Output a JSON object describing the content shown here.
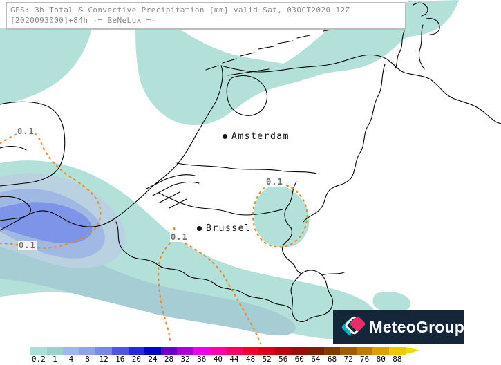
{
  "header": {
    "line1": "GFS: 3h Total & Convective Precipitation [mm] valid Sat, 03OCT2020 12Z",
    "line2": "[2020093000]+84h -= BeNeLux =-"
  },
  "map": {
    "cities": [
      {
        "name": "Amsterdam"
      },
      {
        "name": "Brussel"
      }
    ],
    "contour_labels": [
      "0.1",
      "0.1",
      "0.1",
      "0.1"
    ],
    "contour_value_color": "#ed8a30",
    "fill_colors": {
      "teal_light": "#b4e0da",
      "teal_mid": "#a6cdd4",
      "blue_pale": "#bad1e2",
      "blue_light": "#a0b8e4",
      "blue_medium": "#7e94e9"
    }
  },
  "colorbar": {
    "unit": "mm",
    "labels": [
      "0.2",
      "1",
      "4",
      "8",
      "12",
      "16",
      "20",
      "24",
      "28",
      "32",
      "36",
      "40",
      "44",
      "48",
      "52",
      "56",
      "60",
      "64",
      "68",
      "72",
      "76",
      "80",
      "88"
    ],
    "colors": [
      "#a8e0d8",
      "#9cd2cc",
      "#9cb8ec",
      "#8ca4e8",
      "#7888e4",
      "#5054e0",
      "#2828de",
      "#0404c8",
      "#6600cc",
      "#aa00dd",
      "#ee00ee",
      "#ff00aa",
      "#fa0066",
      "#f4002c",
      "#dc0018",
      "#bc0410",
      "#980e08",
      "#7a2006",
      "#7e3c02",
      "#a05c00",
      "#c07c00",
      "#dca000",
      "#f0c800"
    ],
    "arrow_color": "#f0d800"
  },
  "logo": {
    "text": "MeteoGroup",
    "bg": "#15263a",
    "diamond_teal": "#00b2cc",
    "diamond_pink": "#ee2a68"
  }
}
